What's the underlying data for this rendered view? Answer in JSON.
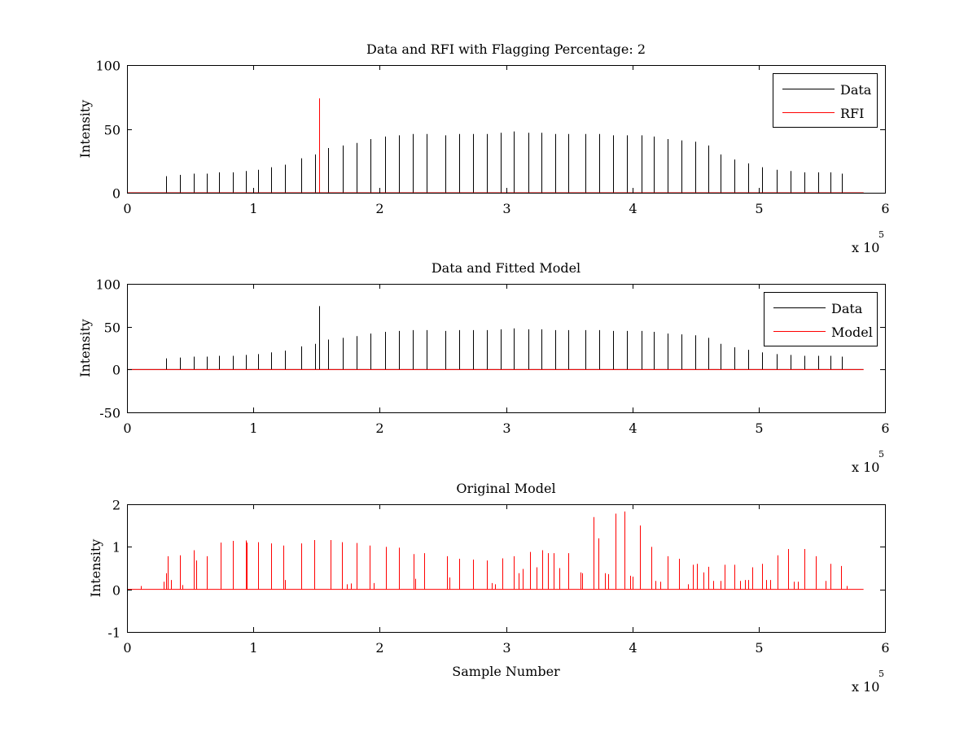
{
  "chart_data": [
    {
      "type": "line",
      "title": "Data and RFI with Flagging Percentage: 2",
      "ylabel": "Intensity",
      "xlabel": "",
      "xlim": [
        0,
        6
      ],
      "ylim": [
        0,
        100
      ],
      "x_multiplier_label": "x 10",
      "x_multiplier_exp": "5",
      "xticks": [
        "0",
        "1",
        "2",
        "3",
        "4",
        "5",
        "6"
      ],
      "yticks": [
        {
          "value": 0,
          "label": "0"
        },
        {
          "value": 50,
          "label": "50"
        },
        {
          "value": 100,
          "label": "100"
        }
      ],
      "legend": {
        "position": "top-right",
        "entries": [
          {
            "name": "Data",
            "color": "#000000"
          },
          {
            "name": "RFI",
            "color": "#ff0000"
          }
        ]
      },
      "series": [
        {
          "name": "Data",
          "color": "#000000",
          "baseline": 0,
          "x_end": 5.83,
          "spikes": [
            [
              0.31,
              13
            ],
            [
              0.42,
              14
            ],
            [
              0.53,
              15
            ],
            [
              0.63,
              15
            ],
            [
              0.73,
              16
            ],
            [
              0.84,
              16
            ],
            [
              0.94,
              17
            ],
            [
              1.04,
              18
            ],
            [
              1.14,
              20
            ],
            [
              1.25,
              22
            ],
            [
              1.38,
              27
            ],
            [
              1.49,
              30
            ],
            [
              1.49,
              15
            ],
            [
              1.59,
              35
            ],
            [
              1.59,
              33
            ],
            [
              1.71,
              37
            ],
            [
              1.71,
              17
            ],
            [
              1.82,
              39
            ],
            [
              1.93,
              42
            ],
            [
              2.04,
              44
            ],
            [
              2.15,
              45
            ],
            [
              2.26,
              46
            ],
            [
              2.26,
              45
            ],
            [
              2.37,
              46
            ],
            [
              2.37,
              6
            ],
            [
              2.52,
              45
            ],
            [
              2.52,
              9
            ],
            [
              2.63,
              46
            ],
            [
              2.63,
              6
            ],
            [
              2.74,
              46
            ],
            [
              2.85,
              46
            ],
            [
              2.85,
              16
            ],
            [
              2.96,
              47
            ],
            [
              3.06,
              48
            ],
            [
              3.06,
              30
            ],
            [
              3.18,
              47
            ],
            [
              3.28,
              47
            ],
            [
              3.28,
              46
            ],
            [
              3.39,
              46
            ],
            [
              3.49,
              46
            ],
            [
              3.49,
              44
            ],
            [
              3.63,
              46
            ],
            [
              3.74,
              46
            ],
            [
              3.85,
              45
            ],
            [
              3.85,
              44
            ],
            [
              3.96,
              45
            ],
            [
              4.07,
              45
            ],
            [
              4.17,
              44
            ],
            [
              4.28,
              42
            ],
            [
              4.39,
              41
            ],
            [
              4.5,
              40
            ],
            [
              4.5,
              39
            ],
            [
              4.6,
              37
            ],
            [
              4.7,
              30
            ],
            [
              4.81,
              26
            ],
            [
              4.92,
              23
            ],
            [
              4.92,
              6
            ],
            [
              5.03,
              20
            ],
            [
              5.14,
              18
            ],
            [
              5.25,
              17
            ],
            [
              5.36,
              16
            ],
            [
              5.47,
              16
            ],
            [
              5.57,
              16
            ],
            [
              5.66,
              15
            ]
          ]
        },
        {
          "name": "RFI",
          "color": "#ff0000",
          "baseline": 0,
          "x_end": 5.83,
          "spikes": [
            [
              1.52,
              74
            ],
            [
              1.52,
              30
            ]
          ]
        }
      ]
    },
    {
      "type": "line",
      "title": "Data and Fitted Model",
      "ylabel": "Intensity",
      "xlabel": "",
      "xlim": [
        0,
        6
      ],
      "ylim": [
        -50,
        100
      ],
      "x_multiplier_label": "x 10",
      "x_multiplier_exp": "5",
      "xticks": [
        "0",
        "1",
        "2",
        "3",
        "4",
        "5",
        "6"
      ],
      "yticks": [
        {
          "value": -50,
          "label": "-50"
        },
        {
          "value": 0,
          "label": "0"
        },
        {
          "value": 50,
          "label": "50"
        },
        {
          "value": 100,
          "label": "100"
        }
      ],
      "legend": {
        "position": "top-right",
        "entries": [
          {
            "name": "Data",
            "color": "#000000"
          },
          {
            "name": "Model",
            "color": "#ff0000"
          }
        ]
      },
      "series": [
        {
          "name": "Data",
          "color": "#000000",
          "baseline": 0,
          "x_end": 5.83,
          "spikes": [
            [
              0.31,
              13
            ],
            [
              0.42,
              14
            ],
            [
              0.53,
              15
            ],
            [
              0.63,
              15
            ],
            [
              0.73,
              16
            ],
            [
              0.84,
              16
            ],
            [
              0.94,
              17
            ],
            [
              1.04,
              18
            ],
            [
              1.14,
              20
            ],
            [
              1.25,
              22
            ],
            [
              1.38,
              27
            ],
            [
              1.49,
              30
            ],
            [
              1.49,
              15
            ],
            [
              1.52,
              74
            ],
            [
              1.59,
              35
            ],
            [
              1.59,
              33
            ],
            [
              1.71,
              37
            ],
            [
              1.71,
              17
            ],
            [
              1.82,
              39
            ],
            [
              1.93,
              42
            ],
            [
              2.04,
              44
            ],
            [
              2.15,
              45
            ],
            [
              2.26,
              46
            ],
            [
              2.26,
              45
            ],
            [
              2.37,
              46
            ],
            [
              2.37,
              6
            ],
            [
              2.52,
              45
            ],
            [
              2.52,
              9
            ],
            [
              2.63,
              46
            ],
            [
              2.63,
              6
            ],
            [
              2.74,
              46
            ],
            [
              2.85,
              46
            ],
            [
              2.85,
              16
            ],
            [
              2.96,
              47
            ],
            [
              3.06,
              48
            ],
            [
              3.06,
              30
            ],
            [
              3.18,
              47
            ],
            [
              3.28,
              47
            ],
            [
              3.28,
              46
            ],
            [
              3.39,
              46
            ],
            [
              3.49,
              46
            ],
            [
              3.49,
              44
            ],
            [
              3.63,
              46
            ],
            [
              3.74,
              46
            ],
            [
              3.85,
              45
            ],
            [
              3.85,
              44
            ],
            [
              3.96,
              45
            ],
            [
              4.07,
              45
            ],
            [
              4.17,
              44
            ],
            [
              4.28,
              42
            ],
            [
              4.39,
              41
            ],
            [
              4.5,
              40
            ],
            [
              4.5,
              39
            ],
            [
              4.6,
              37
            ],
            [
              4.7,
              30
            ],
            [
              4.81,
              26
            ],
            [
              4.92,
              23
            ],
            [
              4.92,
              6
            ],
            [
              5.03,
              20
            ],
            [
              5.14,
              18
            ],
            [
              5.25,
              17
            ],
            [
              5.36,
              16
            ],
            [
              5.47,
              16
            ],
            [
              5.57,
              16
            ],
            [
              5.66,
              15
            ]
          ]
        },
        {
          "name": "Model",
          "color": "#ff0000",
          "baseline": 0,
          "x_end": 5.83,
          "spikes": []
        }
      ]
    },
    {
      "type": "line",
      "title": "Original Model",
      "ylabel": "Intensity",
      "xlabel": "Sample Number",
      "xlim": [
        0,
        6
      ],
      "ylim": [
        -1,
        2
      ],
      "x_multiplier_label": "x 10",
      "x_multiplier_exp": "5",
      "xticks": [
        "0",
        "1",
        "2",
        "3",
        "4",
        "5",
        "6"
      ],
      "yticks": [
        {
          "value": -1,
          "label": "-1"
        },
        {
          "value": 0,
          "label": "0"
        },
        {
          "value": 1,
          "label": "1"
        },
        {
          "value": 2,
          "label": "2"
        }
      ],
      "legend": null,
      "series": [
        {
          "name": "",
          "color": "#ff0000",
          "baseline": 0,
          "x_end": 5.83,
          "spikes": [
            [
              0.11,
              0.08
            ],
            [
              0.29,
              0.18
            ],
            [
              0.31,
              0.38
            ],
            [
              0.32,
              0.78
            ],
            [
              0.35,
              0.22
            ],
            [
              0.42,
              0.8
            ],
            [
              0.44,
              0.1
            ],
            [
              0.53,
              0.92
            ],
            [
              0.55,
              0.68
            ],
            [
              0.63,
              0.78
            ],
            [
              0.74,
              1.1
            ],
            [
              0.84,
              1.14
            ],
            [
              0.94,
              1.15
            ],
            [
              0.95,
              1.1
            ],
            [
              1.04,
              1.11
            ],
            [
              1.14,
              1.08
            ],
            [
              1.24,
              1.03
            ],
            [
              1.25,
              0.22
            ],
            [
              1.38,
              1.08
            ],
            [
              1.48,
              1.16
            ],
            [
              1.61,
              1.16
            ],
            [
              1.7,
              1.11
            ],
            [
              1.74,
              0.12
            ],
            [
              1.77,
              0.14
            ],
            [
              1.82,
              1.09
            ],
            [
              1.92,
              1.03
            ],
            [
              1.95,
              0.15
            ],
            [
              2.05,
              1.0
            ],
            [
              2.15,
              0.98
            ],
            [
              2.27,
              0.83
            ],
            [
              2.28,
              0.25
            ],
            [
              2.35,
              0.85
            ],
            [
              2.53,
              0.78
            ],
            [
              2.55,
              0.28
            ],
            [
              2.63,
              0.72
            ],
            [
              2.74,
              0.7
            ],
            [
              2.85,
              0.68
            ],
            [
              2.89,
              0.15
            ],
            [
              2.91,
              0.12
            ],
            [
              2.97,
              0.73
            ],
            [
              3.06,
              0.78
            ],
            [
              3.1,
              0.38
            ],
            [
              3.13,
              0.48
            ],
            [
              3.19,
              0.88
            ],
            [
              3.24,
              0.52
            ],
            [
              3.29,
              0.92
            ],
            [
              3.33,
              0.85
            ],
            [
              3.38,
              0.85
            ],
            [
              3.42,
              0.5
            ],
            [
              3.49,
              0.85
            ],
            [
              3.59,
              0.4
            ],
            [
              3.6,
              0.38
            ],
            [
              3.69,
              1.7
            ],
            [
              3.73,
              1.2
            ],
            [
              3.78,
              0.38
            ],
            [
              3.81,
              0.36
            ],
            [
              3.87,
              1.78
            ],
            [
              3.94,
              1.83
            ],
            [
              3.98,
              0.32
            ],
            [
              4.0,
              0.3
            ],
            [
              4.06,
              1.5
            ],
            [
              4.15,
              1.0
            ],
            [
              4.18,
              0.2
            ],
            [
              4.22,
              0.18
            ],
            [
              4.28,
              0.78
            ],
            [
              4.37,
              0.72
            ],
            [
              4.44,
              0.12
            ],
            [
              4.48,
              0.58
            ],
            [
              4.51,
              0.6
            ],
            [
              4.56,
              0.4
            ],
            [
              4.6,
              0.53
            ],
            [
              4.64,
              0.2
            ],
            [
              4.7,
              0.2
            ],
            [
              4.73,
              0.58
            ],
            [
              4.81,
              0.58
            ],
            [
              4.85,
              0.2
            ],
            [
              4.89,
              0.22
            ],
            [
              4.92,
              0.22
            ],
            [
              4.95,
              0.52
            ],
            [
              5.03,
              0.6
            ],
            [
              5.06,
              0.22
            ],
            [
              5.09,
              0.22
            ],
            [
              5.15,
              0.8
            ],
            [
              5.23,
              0.95
            ],
            [
              5.28,
              0.18
            ],
            [
              5.31,
              0.18
            ],
            [
              5.36,
              0.95
            ],
            [
              5.45,
              0.78
            ],
            [
              5.53,
              0.2
            ],
            [
              5.57,
              0.6
            ],
            [
              5.65,
              0.55
            ],
            [
              5.7,
              0.08
            ]
          ]
        }
      ]
    }
  ]
}
